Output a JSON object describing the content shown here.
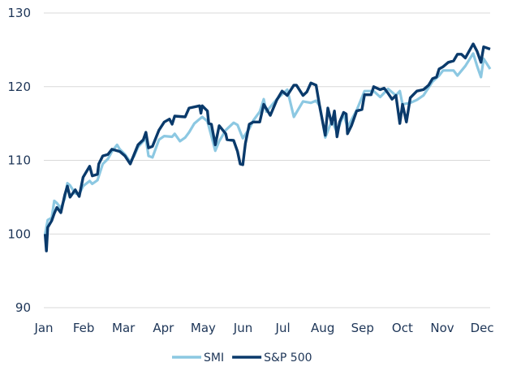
{
  "chart_data": {
    "type": "line",
    "title": "",
    "xlabel": "",
    "ylabel": "",
    "ylim": [
      90,
      130
    ],
    "yticks": [
      "90",
      "100",
      "110",
      "120",
      "130"
    ],
    "xticks": [
      "Jan",
      "Feb",
      "Mar",
      "Apr",
      "May",
      "Jun",
      "Jul",
      "Aug",
      "Sep",
      "Oct",
      "Nov",
      "Dec"
    ],
    "grid": "horizontal",
    "legend_position": "bottom",
    "series": [
      {
        "name": "SMI",
        "color": "#8cc8e2",
        "points": [
          [
            "01-02",
            100
          ],
          [
            "01-04",
            101.9
          ],
          [
            "01-07",
            102.2
          ],
          [
            "01-09",
            104.5
          ],
          [
            "01-11",
            104.2
          ],
          [
            "01-14",
            103.5
          ],
          [
            "01-17",
            104.8
          ],
          [
            "01-19",
            106.9
          ],
          [
            "01-21",
            106.6
          ],
          [
            "01-25",
            105.5
          ],
          [
            "01-28",
            105.4
          ],
          [
            "01-31",
            106.5
          ],
          [
            "02-05",
            107.2
          ],
          [
            "02-07",
            106.8
          ],
          [
            "02-11",
            107.3
          ],
          [
            "02-15",
            109.5
          ],
          [
            "02-19",
            110.2
          ],
          [
            "02-22",
            111.2
          ],
          [
            "02-26",
            112.1
          ],
          [
            "02-28",
            111.5
          ],
          [
            "03-04",
            110.8
          ],
          [
            "03-08",
            109.8
          ],
          [
            "03-11",
            110.6
          ],
          [
            "03-14",
            111.8
          ],
          [
            "03-18",
            112.6
          ],
          [
            "03-20",
            112.9
          ],
          [
            "03-22",
            110.6
          ],
          [
            "03-25",
            110.4
          ],
          [
            "03-30",
            112.8
          ],
          [
            "04-03",
            113.3
          ],
          [
            "04-09",
            113.2
          ],
          [
            "04-11",
            113.6
          ],
          [
            "04-15",
            112.6
          ],
          [
            "04-19",
            113.1
          ],
          [
            "04-22",
            113.8
          ],
          [
            "04-26",
            115.0
          ],
          [
            "04-30",
            115.6
          ],
          [
            "05-02",
            115.9
          ],
          [
            "05-06",
            115.3
          ],
          [
            "05-09",
            113.3
          ],
          [
            "05-12",
            111.3
          ],
          [
            "05-15",
            112.6
          ],
          [
            "05-20",
            114.1
          ],
          [
            "05-26",
            115.1
          ],
          [
            "05-29",
            114.8
          ],
          [
            "06-02",
            113.0
          ],
          [
            "06-07",
            114.3
          ],
          [
            "06-10",
            115.4
          ],
          [
            "06-15",
            116.6
          ],
          [
            "06-18",
            118.3
          ],
          [
            "06-20",
            116.6
          ],
          [
            "06-28",
            118.3
          ],
          [
            "07-06",
            119.6
          ],
          [
            "07-11",
            115.9
          ],
          [
            "07-18",
            118.0
          ],
          [
            "07-24",
            117.8
          ],
          [
            "07-28",
            118.1
          ],
          [
            "07-31",
            117.3
          ],
          [
            "08-04",
            113.1
          ],
          [
            "08-09",
            115.4
          ],
          [
            "08-13",
            113.8
          ],
          [
            "08-18",
            116.3
          ],
          [
            "08-21",
            114.5
          ],
          [
            "08-28",
            116.8
          ],
          [
            "09-03",
            119.4
          ],
          [
            "09-10",
            119.4
          ],
          [
            "09-15",
            118.6
          ],
          [
            "09-21",
            119.7
          ],
          [
            "09-27",
            118.8
          ],
          [
            "09-30",
            119.4
          ],
          [
            "10-02",
            117.6
          ],
          [
            "10-08",
            117.8
          ],
          [
            "10-13",
            118.2
          ],
          [
            "10-18",
            118.8
          ],
          [
            "10-25",
            120.7
          ],
          [
            "10-30",
            121.5
          ],
          [
            "11-02",
            122.2
          ],
          [
            "11-10",
            122.2
          ],
          [
            "11-13",
            121.5
          ],
          [
            "11-19",
            122.8
          ],
          [
            "11-25",
            124.5
          ],
          [
            "11-28",
            122.8
          ],
          [
            "12-01",
            121.3
          ],
          [
            "12-03",
            123.8
          ],
          [
            "12-08",
            122.4
          ]
        ]
      },
      {
        "name": "S&P 500",
        "color": "#0a3a6b",
        "points": [
          [
            "01-02",
            100
          ],
          [
            "01-03",
            97.7
          ],
          [
            "01-04",
            100.9
          ],
          [
            "01-07",
            101.8
          ],
          [
            "01-09",
            102.8
          ],
          [
            "01-11",
            103.6
          ],
          [
            "01-14",
            102.9
          ],
          [
            "01-17",
            105.3
          ],
          [
            "01-19",
            106.5
          ],
          [
            "01-21",
            105.0
          ],
          [
            "01-25",
            106.0
          ],
          [
            "01-28",
            105.1
          ],
          [
            "01-31",
            107.7
          ],
          [
            "02-05",
            109.2
          ],
          [
            "02-07",
            107.9
          ],
          [
            "02-11",
            108.1
          ],
          [
            "02-12",
            109.5
          ],
          [
            "02-15",
            110.6
          ],
          [
            "02-19",
            110.8
          ],
          [
            "02-22",
            111.5
          ],
          [
            "02-28",
            111.2
          ],
          [
            "03-04",
            110.6
          ],
          [
            "03-08",
            109.5
          ],
          [
            "03-11",
            110.8
          ],
          [
            "03-14",
            112.1
          ],
          [
            "03-18",
            112.8
          ],
          [
            "03-20",
            113.8
          ],
          [
            "03-22",
            111.7
          ],
          [
            "03-25",
            111.9
          ],
          [
            "03-30",
            114.1
          ],
          [
            "04-03",
            115.2
          ],
          [
            "04-07",
            115.6
          ],
          [
            "04-09",
            114.9
          ],
          [
            "04-11",
            116.0
          ],
          [
            "04-19",
            115.9
          ],
          [
            "04-22",
            117.1
          ],
          [
            "04-30",
            117.4
          ],
          [
            "05-01",
            116.4
          ],
          [
            "05-02",
            117.4
          ],
          [
            "05-06",
            116.7
          ],
          [
            "05-07",
            115.0
          ],
          [
            "05-09",
            114.9
          ],
          [
            "05-12",
            112.1
          ],
          [
            "05-15",
            114.7
          ],
          [
            "05-20",
            113.6
          ],
          [
            "05-21",
            112.8
          ],
          [
            "05-26",
            112.7
          ],
          [
            "05-29",
            111.2
          ],
          [
            "05-31",
            109.5
          ],
          [
            "06-02",
            109.4
          ],
          [
            "06-04",
            112.3
          ],
          [
            "06-07",
            114.9
          ],
          [
            "06-10",
            115.2
          ],
          [
            "06-15",
            115.2
          ],
          [
            "06-18",
            117.6
          ],
          [
            "06-23",
            116.1
          ],
          [
            "06-28",
            118.2
          ],
          [
            "07-02",
            119.4
          ],
          [
            "07-06",
            118.8
          ],
          [
            "07-11",
            120.2
          ],
          [
            "07-13",
            120.2
          ],
          [
            "07-18",
            118.8
          ],
          [
            "07-21",
            119.3
          ],
          [
            "07-24",
            120.5
          ],
          [
            "07-28",
            120.2
          ],
          [
            "07-31",
            117.1
          ],
          [
            "08-04",
            113.4
          ],
          [
            "08-06",
            117.1
          ],
          [
            "08-09",
            114.9
          ],
          [
            "08-11",
            116.7
          ],
          [
            "08-13",
            113.2
          ],
          [
            "08-15",
            115.2
          ],
          [
            "08-18",
            116.5
          ],
          [
            "08-20",
            116.3
          ],
          [
            "08-21",
            113.6
          ],
          [
            "08-24",
            114.7
          ],
          [
            "08-28",
            116.7
          ],
          [
            "09-01",
            116.9
          ],
          [
            "09-03",
            118.9
          ],
          [
            "09-08",
            118.9
          ],
          [
            "09-10",
            120.0
          ],
          [
            "09-15",
            119.6
          ],
          [
            "09-18",
            119.8
          ],
          [
            "09-21",
            119.1
          ],
          [
            "09-24",
            118.3
          ],
          [
            "09-27",
            118.8
          ],
          [
            "09-30",
            115.0
          ],
          [
            "10-02",
            117.6
          ],
          [
            "10-05",
            115.2
          ],
          [
            "10-08",
            118.5
          ],
          [
            "10-13",
            119.4
          ],
          [
            "10-18",
            119.6
          ],
          [
            "10-22",
            120.2
          ],
          [
            "10-25",
            121.1
          ],
          [
            "10-28",
            121.3
          ],
          [
            "10-30",
            122.4
          ],
          [
            "11-02",
            122.7
          ],
          [
            "11-06",
            123.3
          ],
          [
            "11-10",
            123.5
          ],
          [
            "11-13",
            124.4
          ],
          [
            "11-16",
            124.4
          ],
          [
            "11-19",
            123.9
          ],
          [
            "11-25",
            125.8
          ],
          [
            "11-28",
            124.8
          ],
          [
            "12-01",
            123.3
          ],
          [
            "12-03",
            125.4
          ],
          [
            "12-08",
            125.1
          ]
        ]
      }
    ]
  }
}
